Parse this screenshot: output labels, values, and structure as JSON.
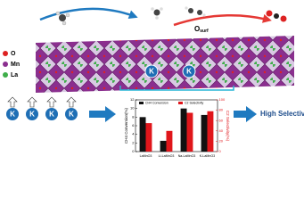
{
  "elements": {
    "O": "O",
    "Mn": "Mn",
    "La": "La"
  },
  "surface_label": {
    "main": "O",
    "sub": "surf"
  },
  "structure_k": [
    "K",
    "K"
  ],
  "promoter_k": [
    "K",
    "K",
    "K",
    "K"
  ],
  "result": "High Selectivity",
  "chart_data": {
    "type": "bar",
    "categories": [
      "LaMnO3",
      "Li-LaMnO3",
      "Na-LaMnO3",
      "K-LaMnO3"
    ],
    "series": [
      {
        "name": "CH4 Conversion",
        "color": "#111111",
        "values": [
          8,
          2.5,
          10,
          8.5
        ]
      },
      {
        "name": "C2 Selectivity",
        "color": "#e0161b",
        "values": [
          55,
          40,
          75,
          78
        ],
        "axis": "y2"
      }
    ],
    "ylabel": "CH4 Conversion(%)",
    "y2label": "C2 Selectivity(%)",
    "ylim": [
      0,
      12
    ],
    "yticks": [
      0,
      2,
      4,
      6,
      8,
      10,
      12
    ],
    "y2lim": [
      0,
      100
    ],
    "y2ticks": [
      0,
      20,
      40,
      60,
      80,
      100
    ]
  }
}
